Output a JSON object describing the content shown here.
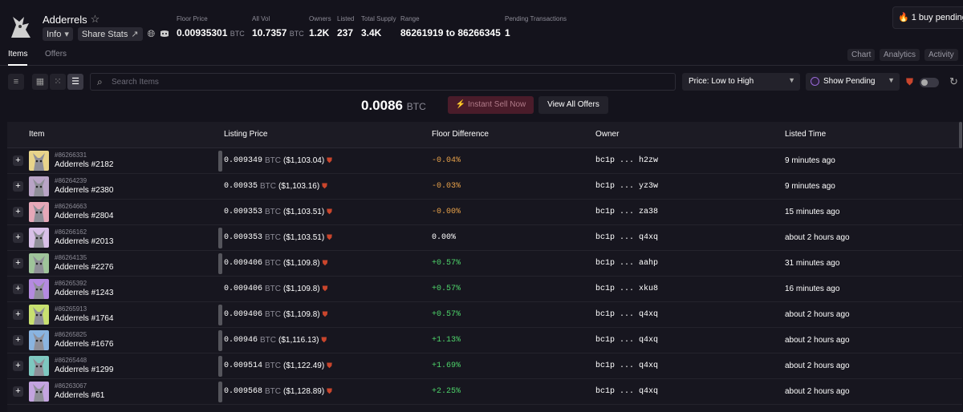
{
  "collection": {
    "name": "Adderrels",
    "info_label": "Info",
    "share_label": "Share Stats"
  },
  "stats": [
    {
      "label": "Floor Price",
      "value": "0.00935301",
      "unit": "BTC"
    },
    {
      "label": "All Vol",
      "value": "10.7357",
      "unit": "BTC"
    },
    {
      "label": "Owners",
      "value": "1.2K",
      "unit": ""
    },
    {
      "label": "Listed",
      "value": "237",
      "unit": ""
    },
    {
      "label": "Total Supply",
      "value": "3.4K",
      "unit": ""
    },
    {
      "label": "Range",
      "value": "86261919 to 86266345",
      "unit": ""
    },
    {
      "label": "Pending Transactions",
      "value": "1",
      "unit": ""
    }
  ],
  "pending_banner": "🔥 1 buy pending...",
  "tabs": {
    "items": "Items",
    "offers": "Offers",
    "chart": "Chart",
    "analytics": "Analytics",
    "activity": "Activity"
  },
  "toolbar": {
    "search_placeholder": "Search Items",
    "sort_value": "Price: Low to High",
    "pending_value": "Show Pending"
  },
  "offer_bar": {
    "price": "0.0086",
    "unit": "BTC",
    "sell_label": "⚡ Instant Sell Now",
    "view_label": "View All Offers"
  },
  "table": {
    "headers": {
      "item": "Item",
      "price": "Listing Price",
      "floor": "Floor Difference",
      "owner": "Owner",
      "time": "Listed Time"
    },
    "rows": [
      {
        "id": "#86266331",
        "name": "Adderrels #2182",
        "price": "0.009349",
        "unit": "BTC",
        "usd": "($1,103.04)",
        "diff": "-0.04%",
        "diff_color": "#e8a24a",
        "owner": "bc1p ... h2zw",
        "time": "9 minutes ago",
        "bar": true,
        "thumb": "#e8d48a"
      },
      {
        "id": "#86264239",
        "name": "Adderrels #2380",
        "price": "0.00935",
        "unit": "BTC",
        "usd": "($1,103.16)",
        "diff": "-0.03%",
        "diff_color": "#e8a24a",
        "owner": "bc1p ... yz3w",
        "time": "9 minutes ago",
        "bar": false,
        "thumb": "#b9a4c6"
      },
      {
        "id": "#86264663",
        "name": "Adderrels #2804",
        "price": "0.009353",
        "unit": "BTC",
        "usd": "($1,103.51)",
        "diff": "-0.00%",
        "diff_color": "#e8a24a",
        "owner": "bc1p ... za38",
        "time": "15 minutes ago",
        "bar": false,
        "thumb": "#e6a8b8"
      },
      {
        "id": "#86266162",
        "name": "Adderrels #2013",
        "price": "0.009353",
        "unit": "BTC",
        "usd": "($1,103.51)",
        "diff": "0.00%",
        "diff_color": "#ffffff",
        "owner": "bc1p ... q4xq",
        "time": "about 2 hours ago",
        "bar": true,
        "thumb": "#d8c0e8"
      },
      {
        "id": "#86264135",
        "name": "Adderrels #2276",
        "price": "0.009406",
        "unit": "BTC",
        "usd": "($1,109.8)",
        "diff": "+0.57%",
        "diff_color": "#4ed36a",
        "owner": "bc1p ... aahp",
        "time": "31 minutes ago",
        "bar": true,
        "thumb": "#9fc49a"
      },
      {
        "id": "#86265392",
        "name": "Adderrels #1243",
        "price": "0.009406",
        "unit": "BTC",
        "usd": "($1,109.8)",
        "diff": "+0.57%",
        "diff_color": "#4ed36a",
        "owner": "bc1p ... xku8",
        "time": "16 minutes ago",
        "bar": false,
        "thumb": "#b48ae0"
      },
      {
        "id": "#86265913",
        "name": "Adderrels #1764",
        "price": "0.009406",
        "unit": "BTC",
        "usd": "($1,109.8)",
        "diff": "+0.57%",
        "diff_color": "#4ed36a",
        "owner": "bc1p ... q4xq",
        "time": "about 2 hours ago",
        "bar": true,
        "thumb": "#c8e070"
      },
      {
        "id": "#86265825",
        "name": "Adderrels #1676",
        "price": "0.00946",
        "unit": "BTC",
        "usd": "($1,116.13)",
        "diff": "+1.13%",
        "diff_color": "#4ed36a",
        "owner": "bc1p ... q4xq",
        "time": "about 2 hours ago",
        "bar": true,
        "thumb": "#8ab4e0"
      },
      {
        "id": "#86265448",
        "name": "Adderrels #1299",
        "price": "0.009514",
        "unit": "BTC",
        "usd": "($1,122.49)",
        "diff": "+1.69%",
        "diff_color": "#4ed36a",
        "owner": "bc1p ... q4xq",
        "time": "about 2 hours ago",
        "bar": true,
        "thumb": "#7ec8c0"
      },
      {
        "id": "#86263067",
        "name": "Adderrels #61",
        "price": "0.009568",
        "unit": "BTC",
        "usd": "($1,128.89)",
        "diff": "+2.25%",
        "diff_color": "#4ed36a",
        "owner": "bc1p ... q4xq",
        "time": "about 2 hours ago",
        "bar": true,
        "thumb": "#c4a4e0"
      }
    ]
  }
}
